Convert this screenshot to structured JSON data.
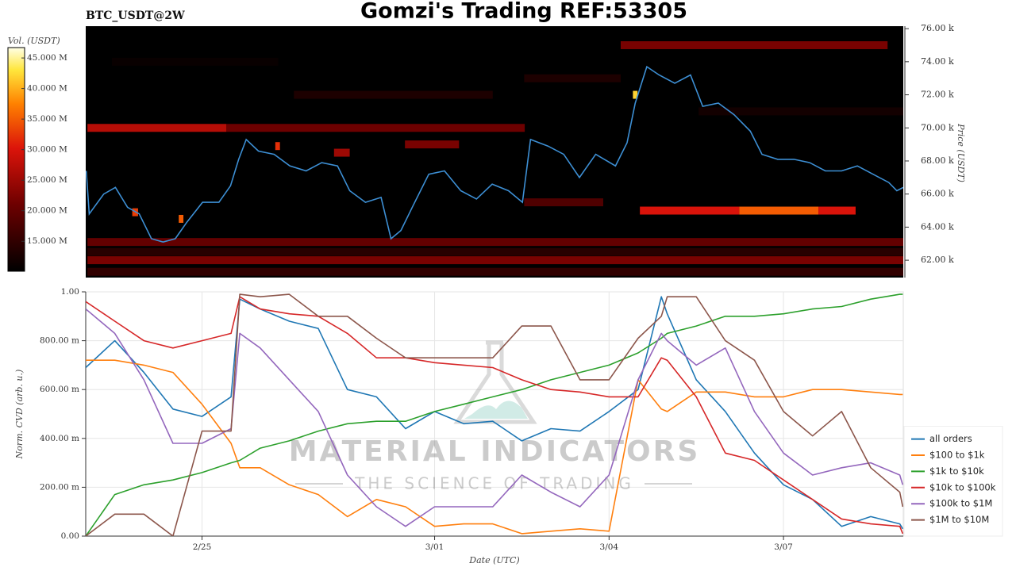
{
  "chart_data": [
    {
      "type": "heatmap",
      "title": "Gomzi's Trading REF:53305",
      "subtitle": "BTC_USDT@2W",
      "ylabel": "Price (USDT)",
      "xlim": [
        -2,
        12.06
      ],
      "ylim": [
        60950,
        76150
      ],
      "yticks": [
        {
          "value": 62000,
          "label": "62.00 k"
        },
        {
          "value": 64000,
          "label": "64.00 k"
        },
        {
          "value": 66000,
          "label": "66.00 k"
        },
        {
          "value": 68000,
          "label": "68.00 k"
        },
        {
          "value": 70000,
          "label": "70.00 k"
        },
        {
          "value": 72000,
          "label": "72.00 k"
        },
        {
          "value": 74000,
          "label": "74.00 k"
        },
        {
          "value": 76000,
          "label": "76.00 k"
        }
      ],
      "colorbar": {
        "label": "Vol. (USDT)",
        "clim": [
          10100000,
          46700000
        ],
        "ticks": [
          {
            "value": 15000000,
            "label": "15.000 M"
          },
          {
            "value": 20000000,
            "label": "20.000 M"
          },
          {
            "value": 25000000,
            "label": "25.000 M"
          },
          {
            "value": 30000000,
            "label": "30.000 M"
          },
          {
            "value": 35000000,
            "label": "35.000 M"
          },
          {
            "value": 40000000,
            "label": "40.000 M"
          },
          {
            "value": 45000000,
            "label": "45.000 M"
          }
        ]
      },
      "bands": [
        {
          "price": 61300,
          "start": -1.97,
          "end": 12.06,
          "volume": 15000000
        },
        {
          "price": 62500,
          "start": -1.97,
          "end": 12.06,
          "volume": 14000000
        },
        {
          "price": 62000,
          "start": -1.97,
          "end": 12.06,
          "volume": 22000000
        },
        {
          "price": 63100,
          "start": -1.97,
          "end": 12.06,
          "volume": 20000000
        },
        {
          "price": 74000,
          "start": -1.55,
          "end": 1.31,
          "volume": 11000000
        },
        {
          "price": 72000,
          "start": 1.58,
          "end": 5.0,
          "volume": 13000000
        },
        {
          "price": 73000,
          "start": 5.54,
          "end": 7.2,
          "volume": 13000000
        },
        {
          "price": 71000,
          "start": 8.54,
          "end": 12.06,
          "volume": 12000000
        },
        {
          "price": 70000,
          "start": -1.97,
          "end": 0.42,
          "volume": 27000000
        },
        {
          "price": 70000,
          "start": 0.42,
          "end": 5.55,
          "volume": 21000000
        },
        {
          "price": 75000,
          "start": 7.2,
          "end": 11.79,
          "volume": 22000000
        },
        {
          "price": 65000,
          "start": 7.53,
          "end": 9.24,
          "volume": 30000000
        },
        {
          "price": 65000,
          "start": 9.24,
          "end": 10.6,
          "volume": 35000000
        },
        {
          "price": 65000,
          "start": 10.6,
          "end": 11.24,
          "volume": 30000000
        },
        {
          "price": 69000,
          "start": 3.49,
          "end": 4.42,
          "volume": 22000000
        },
        {
          "price": 65500,
          "start": 5.54,
          "end": 6.9,
          "volume": 18000000
        },
        {
          "price": 68500,
          "start": 2.27,
          "end": 2.54,
          "volume": 25000000
        },
        {
          "price": 64900,
          "start": -1.2,
          "end": -1.1,
          "volume": 33000000
        },
        {
          "price": 72000,
          "start": 7.41,
          "end": 7.49,
          "volume": 42000000
        },
        {
          "price": 68900,
          "start": 1.26,
          "end": 1.34,
          "volume": 32000000
        },
        {
          "price": 64500,
          "start": -0.4,
          "end": -0.32,
          "volume": 35000000
        }
      ],
      "price": {
        "color": "#3d8fd4",
        "x": [
          -1.99,
          -1.94,
          -1.69,
          -1.49,
          -1.28,
          -1.08,
          -0.87,
          -0.67,
          -0.46,
          -0.26,
          0.01,
          0.29,
          0.49,
          0.63,
          0.76,
          0.97,
          1.24,
          1.51,
          1.79,
          2.06,
          2.33,
          2.54,
          2.81,
          3.08,
          3.25,
          3.42,
          3.63,
          3.9,
          4.17,
          4.45,
          4.72,
          4.99,
          5.27,
          5.51,
          5.65,
          5.95,
          6.22,
          6.49,
          6.77,
          7.11,
          7.31,
          7.45,
          7.65,
          7.86,
          8.13,
          8.4,
          8.61,
          8.88,
          9.15,
          9.43,
          9.63,
          9.9,
          10.18,
          10.45,
          10.72,
          11.0,
          11.27,
          11.54,
          11.81,
          11.95,
          12.06
        ],
        "values": [
          67400,
          64800,
          66000,
          66400,
          65200,
          64800,
          63300,
          63100,
          63300,
          64300,
          65500,
          65500,
          66500,
          68100,
          69300,
          68600,
          68400,
          67700,
          67400,
          67900,
          67700,
          66200,
          65500,
          65800,
          63300,
          63800,
          65300,
          67200,
          67400,
          66200,
          65700,
          66600,
          66200,
          65500,
          69300,
          68900,
          68400,
          67000,
          68400,
          67700,
          69100,
          71500,
          73700,
          73200,
          72700,
          73200,
          71300,
          71500,
          70800,
          69800,
          68400,
          68100,
          68100,
          67900,
          67400,
          67400,
          67700,
          67200,
          66700,
          66200,
          66400
        ]
      }
    },
    {
      "type": "line",
      "xlabel": "Date (UTC)",
      "ylabel": "Norm. CVD (arb. u.)",
      "xlim": [
        -2,
        12.06
      ],
      "ylim": [
        0,
        1
      ],
      "xticks": [
        {
          "value": 0,
          "label": "2/25"
        },
        {
          "value": 4,
          "label": "3/01"
        },
        {
          "value": 7,
          "label": "3/04"
        },
        {
          "value": 10,
          "label": "3/07"
        }
      ],
      "yticks": [
        {
          "value": 0,
          "label": "0.00"
        },
        {
          "value": 0.2,
          "label": "200.00 m"
        },
        {
          "value": 0.4,
          "label": "400.00 m"
        },
        {
          "value": 0.6,
          "label": "600.00 m"
        },
        {
          "value": 0.8,
          "label": "800.00 m"
        },
        {
          "value": 1,
          "label": "1.00"
        }
      ],
      "grid": true,
      "legend": "outside lower right",
      "watermark": [
        "MATERIAL INDICATORS",
        "THE SCIENCE OF TRADING"
      ],
      "x": [
        -2,
        -1.5,
        -1,
        -0.5,
        0,
        0.5,
        0.65,
        1,
        1.5,
        2,
        2.5,
        3,
        3.5,
        4,
        4.5,
        5,
        5.5,
        6,
        6.5,
        7,
        7.5,
        7.9,
        8,
        8.5,
        9,
        9.5,
        10,
        10.5,
        11,
        11.5,
        12,
        12.05
      ],
      "series": [
        {
          "name": "all orders",
          "color": "#1f77b4",
          "values": [
            0.69,
            0.8,
            0.67,
            0.52,
            0.49,
            0.57,
            0.97,
            0.93,
            0.88,
            0.85,
            0.6,
            0.57,
            0.44,
            0.51,
            0.46,
            0.47,
            0.39,
            0.44,
            0.43,
            0.51,
            0.6,
            0.98,
            0.91,
            0.64,
            0.51,
            0.34,
            0.21,
            0.15,
            0.04,
            0.08,
            0.05,
            0.03
          ]
        },
        {
          "name": "$100 to $1k",
          "color": "#ff7f0e",
          "values": [
            0.72,
            0.72,
            0.7,
            0.67,
            0.54,
            0.38,
            0.28,
            0.28,
            0.21,
            0.17,
            0.08,
            0.15,
            0.12,
            0.04,
            0.05,
            0.05,
            0.01,
            0.02,
            0.03,
            0.02,
            0.64,
            0.52,
            0.51,
            0.59,
            0.59,
            0.57,
            0.57,
            0.6,
            0.6,
            0.59,
            0.58,
            0.58
          ]
        },
        {
          "name": "$1k to $10k",
          "color": "#2ca02c",
          "values": [
            0,
            0.17,
            0.21,
            0.23,
            0.26,
            0.3,
            0.31,
            0.36,
            0.39,
            0.43,
            0.46,
            0.47,
            0.47,
            0.51,
            0.54,
            0.57,
            0.6,
            0.64,
            0.67,
            0.7,
            0.75,
            0.81,
            0.83,
            0.86,
            0.9,
            0.9,
            0.91,
            0.93,
            0.94,
            0.97,
            0.99,
            0.99
          ]
        },
        {
          "name": "$10k to $100k",
          "color": "#d62728",
          "values": [
            0.96,
            0.88,
            0.8,
            0.77,
            0.8,
            0.83,
            0.98,
            0.93,
            0.91,
            0.9,
            0.83,
            0.73,
            0.73,
            0.71,
            0.7,
            0.69,
            0.64,
            0.6,
            0.59,
            0.57,
            0.57,
            0.73,
            0.72,
            0.57,
            0.34,
            0.31,
            0.23,
            0.15,
            0.07,
            0.05,
            0.04,
            0.01
          ]
        },
        {
          "name": "$100k to $1M",
          "color": "#9467bd",
          "values": [
            0.93,
            0.83,
            0.64,
            0.38,
            0.38,
            0.44,
            0.83,
            0.77,
            0.64,
            0.51,
            0.25,
            0.12,
            0.04,
            0.12,
            0.12,
            0.12,
            0.25,
            0.18,
            0.12,
            0.25,
            0.64,
            0.83,
            0.8,
            0.7,
            0.77,
            0.51,
            0.34,
            0.25,
            0.28,
            0.3,
            0.25,
            0.21
          ]
        },
        {
          "name": "$1M to $10M",
          "color": "#8c564b",
          "values": [
            0,
            0.09,
            0.09,
            0,
            0.43,
            0.43,
            0.99,
            0.98,
            0.99,
            0.9,
            0.9,
            0.81,
            0.73,
            0.73,
            0.73,
            0.73,
            0.86,
            0.86,
            0.64,
            0.64,
            0.81,
            0.9,
            0.98,
            0.98,
            0.8,
            0.72,
            0.51,
            0.41,
            0.51,
            0.28,
            0.18,
            0.12
          ]
        }
      ]
    }
  ]
}
